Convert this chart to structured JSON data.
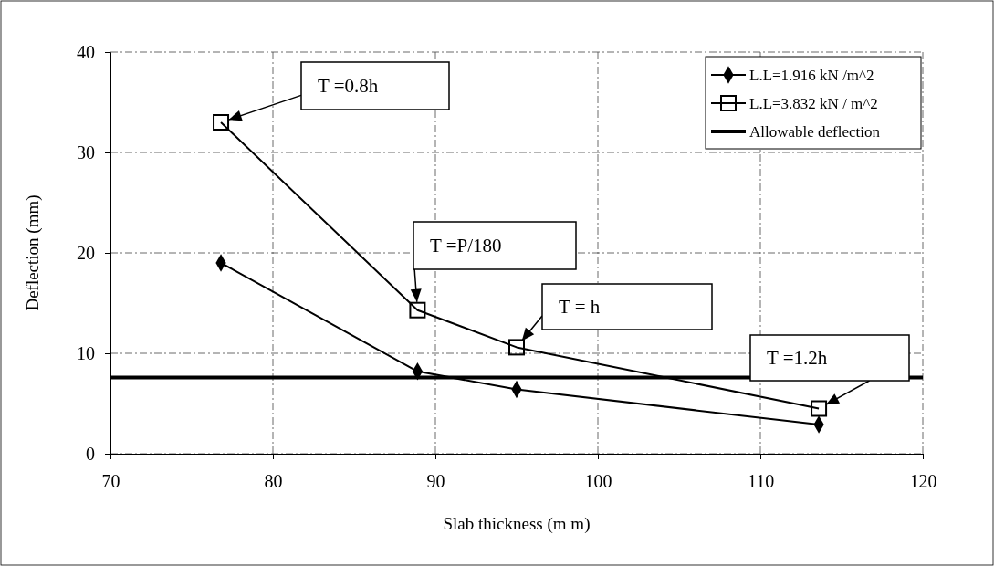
{
  "chart_data": {
    "type": "line",
    "xlabel": "Slab thickness (m m)",
    "ylabel": "Deflection (mm)",
    "xlim": [
      70,
      120
    ],
    "xticks": [
      70,
      80,
      90,
      100,
      110,
      120
    ],
    "ylim": [
      0,
      40
    ],
    "yticks": [
      0,
      10,
      20,
      30,
      40
    ],
    "grid": true,
    "legend": "top right",
    "line_style": "solid",
    "series": [
      {
        "name": "L.L=1.916 kN /m^2",
        "color": "#000000",
        "marker": "diamond",
        "x": [
          76.8,
          88.9,
          95.0,
          113.6
        ],
        "values": [
          19.0,
          8.2,
          6.4,
          2.9
        ]
      },
      {
        "name": "L.L=3.832 kN / m^2",
        "color": "#000000",
        "marker": "square",
        "x": [
          76.8,
          88.9,
          95.0,
          113.6
        ],
        "values": [
          33.0,
          14.3,
          10.6,
          4.5
        ]
      }
    ],
    "ref_lines": [
      {
        "axis": "y",
        "value": 7.6,
        "label": "Allowable deflection",
        "color": "#000000"
      }
    ],
    "annotations": [
      {
        "text": "T =0.8h",
        "x": 76.8,
        "y": 33.0
      },
      {
        "text": "T =P/180",
        "x": 88.9,
        "y": 14.3
      },
      {
        "text": "T = h",
        "x": 95.0,
        "y": 10.6
      },
      {
        "text": "T =1.2h",
        "x": 113.6,
        "y": 4.5
      }
    ]
  }
}
